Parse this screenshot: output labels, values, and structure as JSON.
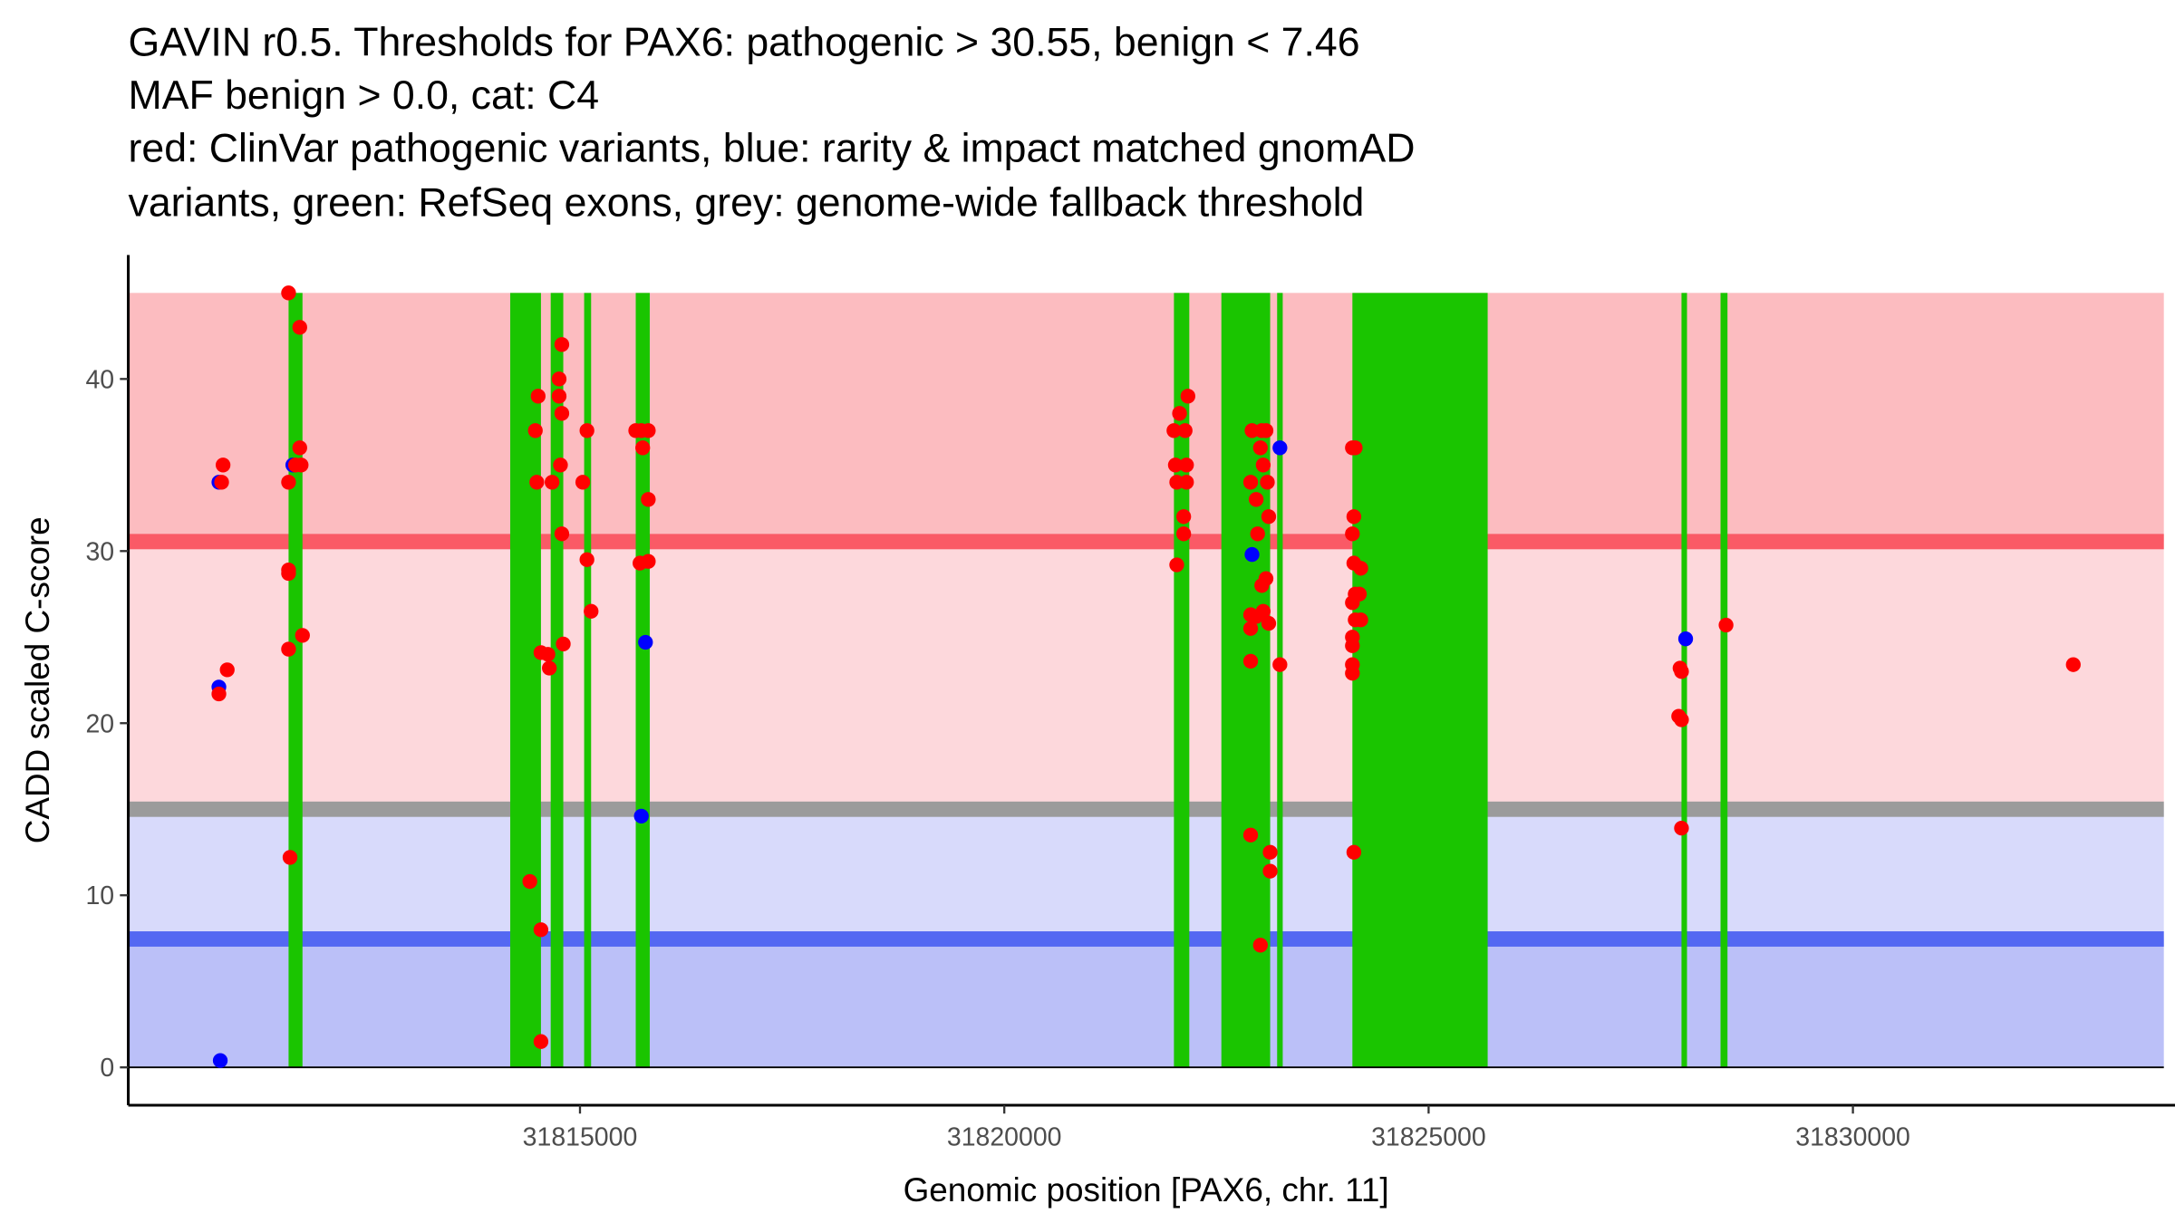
{
  "chart_data": {
    "type": "scatter",
    "title_lines": [
      "GAVIN r0.5. Thresholds for PAX6: pathogenic > 30.55, benign < 7.46",
      "MAF benign > 0.0, cat: C4",
      "red: ClinVar pathogenic variants, blue: rarity & impact matched gnomAD",
      "variants, green: RefSeq exons, grey: genome-wide fallback threshold"
    ],
    "xlabel": "Genomic position [PAX6, chr. 11]",
    "ylabel": "CADD scaled C-score",
    "xlim": [
      31809677,
      31833664
    ],
    "ylim": [
      -2.2,
      47.2
    ],
    "xticks": [
      31815000,
      31820000,
      31825000,
      31830000
    ],
    "xtick_labels": [
      "31815000",
      "31820000",
      "31825000",
      "31830000"
    ],
    "yticks": [
      0,
      10,
      20,
      30,
      40
    ],
    "ytick_labels": [
      "0",
      "10",
      "20",
      "30",
      "40"
    ],
    "thresholds": {
      "pathogenic": 30.55,
      "benign": 7.46,
      "genome_wide": 15,
      "max": 45
    },
    "bands": [
      {
        "name": "pathogenic-zone",
        "from": 30.55,
        "to": 45,
        "color": "#fcbcc0"
      },
      {
        "name": "fallback-pathogenic-zone",
        "from": 15,
        "to": 30.55,
        "color": "#fdd8dc"
      },
      {
        "name": "fallback-benign-zone",
        "from": 7.46,
        "to": 15,
        "color": "#d8dafb"
      },
      {
        "name": "benign-zone",
        "from": 0,
        "to": 7.46,
        "color": "#bbc0f8"
      }
    ],
    "lines": [
      {
        "name": "pathogenic-threshold-line",
        "y": 30.55,
        "color": "#fa5a66"
      },
      {
        "name": "genome-wide-threshold-line",
        "y": 15,
        "color": "#9b9b9b"
      },
      {
        "name": "benign-threshold-line",
        "y": 7.46,
        "color": "#5468f2"
      }
    ],
    "exon_color": "#1ac500",
    "exons": [
      [
        31811566,
        31811730
      ],
      [
        31814178,
        31814540
      ],
      [
        31814655,
        31814803
      ],
      [
        31815049,
        31815131
      ],
      [
        31815657,
        31815822
      ],
      [
        31821999,
        31822180
      ],
      [
        31822558,
        31823133
      ],
      [
        31823215,
        31823281
      ],
      [
        31824102,
        31825696
      ],
      [
        31827980,
        31828045
      ],
      [
        31828440,
        31828522
      ]
    ],
    "series": [
      {
        "name": "gnomAD",
        "color": "#0000ff",
        "points": [
          [
            31810745,
            34
          ],
          [
            31810745,
            22.1
          ],
          [
            31810761,
            0.4
          ],
          [
            31811616,
            35
          ],
          [
            31815772,
            24.7
          ],
          [
            31815723,
            14.6
          ],
          [
            31822919,
            29.8
          ],
          [
            31823248,
            36
          ],
          [
            31828029,
            24.9
          ]
        ]
      },
      {
        "name": "ClinVar",
        "color": "#ff0000",
        "points": [
          [
            31810794,
            35
          ],
          [
            31810777,
            34
          ],
          [
            31810843,
            23.1
          ],
          [
            31810745,
            21.7
          ],
          [
            31811566,
            45
          ],
          [
            31811698,
            43
          ],
          [
            31811566,
            34
          ],
          [
            31811698,
            36
          ],
          [
            31811714,
            35
          ],
          [
            31811648,
            35
          ],
          [
            31811566,
            28.9
          ],
          [
            31811566,
            28.7
          ],
          [
            31811566,
            24.3
          ],
          [
            31811730,
            25.1
          ],
          [
            31811583,
            12.2
          ],
          [
            31814474,
            37
          ],
          [
            31814507,
            39
          ],
          [
            31814491,
            34
          ],
          [
            31814671,
            34
          ],
          [
            31814540,
            24.1
          ],
          [
            31814622,
            24
          ],
          [
            31814639,
            23.2
          ],
          [
            31814803,
            24.6
          ],
          [
            31814786,
            42
          ],
          [
            31814754,
            40
          ],
          [
            31814754,
            39
          ],
          [
            31814786,
            38
          ],
          [
            31814770,
            35
          ],
          [
            31814786,
            31
          ],
          [
            31815082,
            37
          ],
          [
            31815033,
            34
          ],
          [
            31815082,
            29.5
          ],
          [
            31815131,
            26.5
          ],
          [
            31814409,
            10.8
          ],
          [
            31814540,
            8
          ],
          [
            31814540,
            1.5
          ],
          [
            31815657,
            37
          ],
          [
            31815723,
            37
          ],
          [
            31815805,
            37
          ],
          [
            31815739,
            36
          ],
          [
            31815805,
            33
          ],
          [
            31815707,
            29.3
          ],
          [
            31815805,
            29.4
          ],
          [
            31821999,
            37
          ],
          [
            31822065,
            38
          ],
          [
            31822131,
            37
          ],
          [
            31822016,
            35
          ],
          [
            31822147,
            35
          ],
          [
            31822032,
            34
          ],
          [
            31822147,
            34
          ],
          [
            31822114,
            32
          ],
          [
            31822164,
            39
          ],
          [
            31822114,
            31
          ],
          [
            31822032,
            29.2
          ],
          [
            31822919,
            37
          ],
          [
            31823034,
            37
          ],
          [
            31823084,
            37
          ],
          [
            31823018,
            36
          ],
          [
            31823051,
            35
          ],
          [
            31822903,
            34
          ],
          [
            31823100,
            34
          ],
          [
            31822968,
            33
          ],
          [
            31823116,
            32
          ],
          [
            31822985,
            31
          ],
          [
            31823084,
            28.4
          ],
          [
            31823034,
            28
          ],
          [
            31822903,
            26.3
          ],
          [
            31822968,
            26.2
          ],
          [
            31823051,
            26.5
          ],
          [
            31823116,
            25.8
          ],
          [
            31822903,
            25.5
          ],
          [
            31822903,
            23.6
          ],
          [
            31823248,
            23.4
          ],
          [
            31822903,
            13.5
          ],
          [
            31823133,
            12.5
          ],
          [
            31823133,
            11.4
          ],
          [
            31823018,
            7.1
          ],
          [
            31824102,
            36
          ],
          [
            31824135,
            36
          ],
          [
            31824119,
            32
          ],
          [
            31824102,
            31
          ],
          [
            31824119,
            29.3
          ],
          [
            31824201,
            29
          ],
          [
            31824135,
            27.5
          ],
          [
            31824184,
            27.5
          ],
          [
            31824102,
            27
          ],
          [
            31824135,
            26
          ],
          [
            31824201,
            26
          ],
          [
            31824102,
            25
          ],
          [
            31824102,
            24.5
          ],
          [
            31824102,
            23.4
          ],
          [
            31824102,
            22.9
          ],
          [
            31824119,
            12.5
          ],
          [
            31827963,
            23.2
          ],
          [
            31827980,
            23
          ],
          [
            31827947,
            20.4
          ],
          [
            31827980,
            20.2
          ],
          [
            31827980,
            13.9
          ],
          [
            31828505,
            25.7
          ],
          [
            31832597,
            23.4
          ]
        ]
      }
    ]
  }
}
